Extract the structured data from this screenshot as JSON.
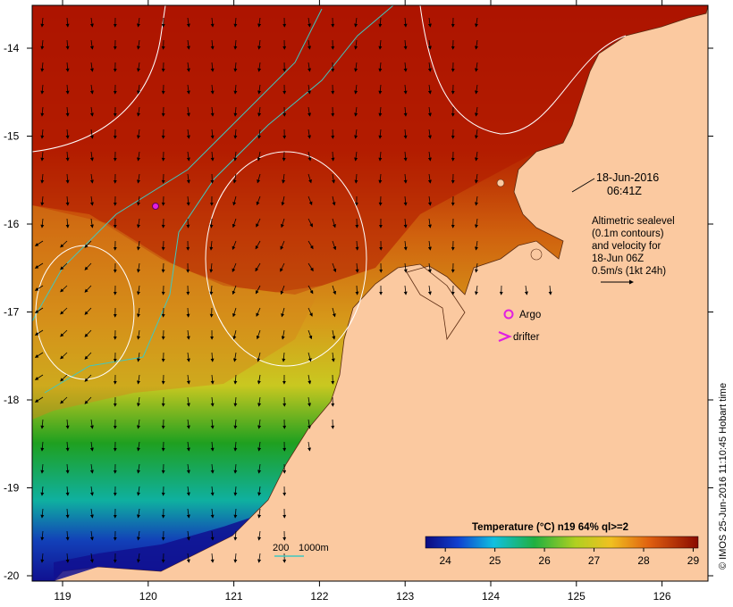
{
  "map": {
    "lon_ticks": [
      "119",
      "120",
      "121",
      "122",
      "123",
      "124",
      "125",
      "126"
    ],
    "lat_ticks": [
      "-14",
      "-15",
      "-16",
      "-17",
      "-18",
      "-19",
      "-20"
    ],
    "datetime": {
      "date": "18-Jun-2016",
      "time": "06:41Z"
    },
    "altimetry_note": [
      "Altimetric sealevel",
      "(0.1m contours)",
      "and velocity for",
      "18-Jun 06Z",
      "0.5m/s (1kt 24h)"
    ],
    "legend": {
      "argo": "Argo",
      "drifter": "drifter"
    },
    "depth_legend": {
      "label_200": "200",
      "label_1000": "1000m"
    },
    "colorbar": {
      "title": "Temperature (°C) n19 64% ql>=2",
      "ticks": [
        "24",
        "25",
        "26",
        "27",
        "28",
        "29"
      ],
      "range": [
        23.6,
        29.1
      ]
    },
    "credit": "© IMOS 25-Jun-2016 11:10:45 Hobart time",
    "colors": {
      "land": "#fbc9a0",
      "warm": "#a81000",
      "mid": "#d86a10",
      "cool": "#1ea51e",
      "cold": "#1a2fa8",
      "contour_white": "#ffffff",
      "isobath": "#40c8c0",
      "argo": "#e020e0"
    }
  }
}
